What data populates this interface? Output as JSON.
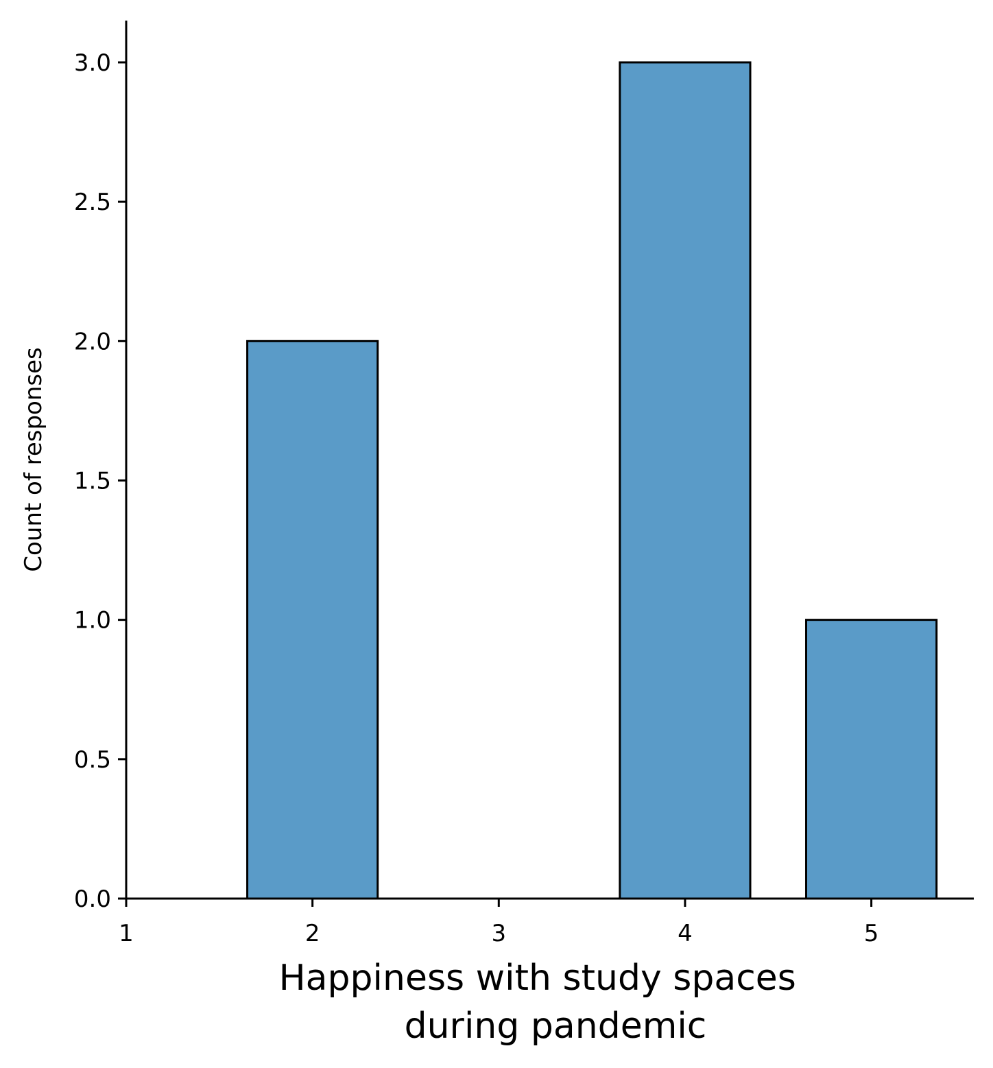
{
  "chart_data": {
    "type": "bar",
    "title": "",
    "xlabel_lines": [
      "Happiness with study spaces",
      "during pandemic"
    ],
    "ylabel": "Count of responses",
    "categories": [
      2,
      3,
      4,
      5
    ],
    "values": [
      2,
      0,
      3,
      1
    ],
    "bar_width": 0.7,
    "xlim": [
      1,
      5.55
    ],
    "ylim": [
      0,
      3.15
    ],
    "xticks": [
      1,
      2,
      3,
      4,
      5
    ],
    "xtick_labels": [
      "1",
      "2",
      "3",
      "4",
      "5"
    ],
    "yticks": [
      0,
      0.5,
      1,
      1.5,
      2,
      2.5,
      3
    ],
    "ytick_labels": [
      "0.0",
      "0.5",
      "1.0",
      "1.5",
      "2.0",
      "2.5",
      "3.0"
    ],
    "grid": false,
    "legend": "none",
    "bar_color": "#5a9bc8",
    "edge_color": "#000000"
  }
}
